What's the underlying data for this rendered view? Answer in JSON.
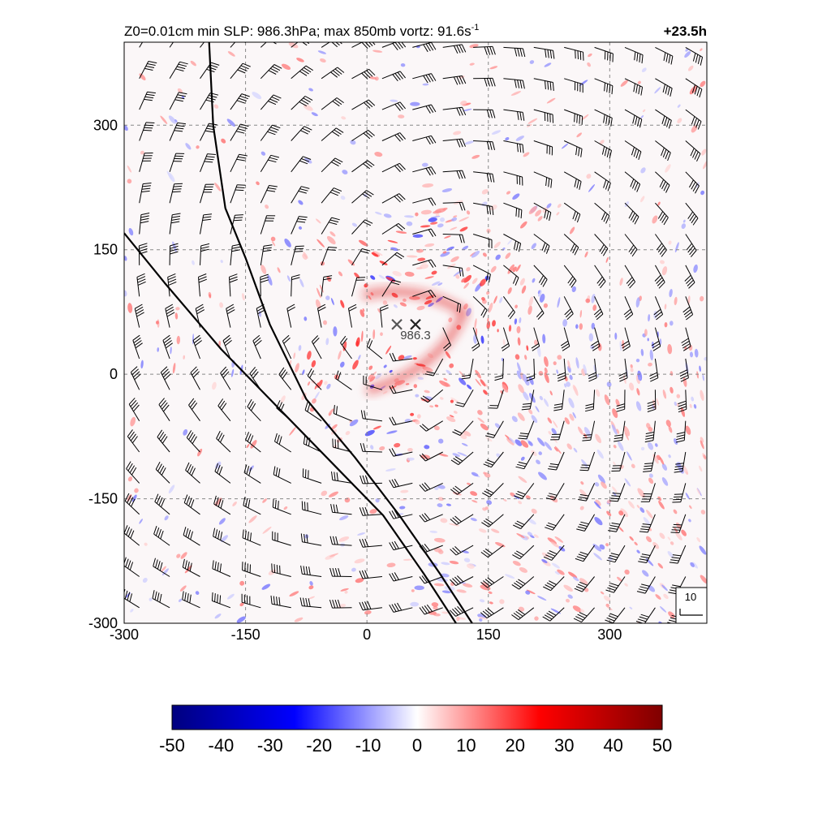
{
  "header": {
    "title_prefix": "Z0=0.01cm  min SLP: 986.3hPa; max 850mb vortz:  91.6s",
    "title_exp": "-1",
    "time_label": "+23.5h"
  },
  "chart_data": {
    "type": "heatmap",
    "title": "Z0=0.01cm  min SLP: 986.3hPa; max 850mb vortz:  91.6s-1",
    "xlabel": "",
    "ylabel": "",
    "xlim": [
      -300,
      420
    ],
    "ylim": [
      -300,
      400
    ],
    "x_ticks": [
      -300,
      -150,
      0,
      150,
      300
    ],
    "y_ticks": [
      -300,
      -150,
      0,
      150,
      300
    ],
    "x_tick_labels": [
      "-300",
      "-150",
      "0",
      "150",
      "300"
    ],
    "y_tick_labels": [
      "-300",
      "-150",
      "0",
      "150",
      "300"
    ],
    "grid": "dashed",
    "colorbar": {
      "min": -50,
      "max": 50,
      "ticks": [
        -50,
        -40,
        -30,
        -20,
        -10,
        0,
        10,
        20,
        30,
        40,
        50
      ],
      "tick_labels": [
        "-50",
        "-40",
        "-30",
        "-20",
        "-10",
        "0",
        "10",
        "20",
        "30",
        "40",
        "50"
      ],
      "colors": [
        "#00007f",
        "#0000ff",
        "#ffffff",
        "#ff0000",
        "#7f0000"
      ]
    },
    "storm_center": {
      "x": 60,
      "y": 60,
      "label": "986.3"
    },
    "secondary_center": {
      "x": 37,
      "y": 60
    },
    "eye_center": {
      "x": 60,
      "y": 50
    },
    "front_lines": [
      [
        [
          -195,
          400
        ],
        [
          -190,
          300
        ],
        [
          -175,
          200
        ],
        [
          -150,
          140
        ],
        [
          -120,
          60
        ],
        [
          -75,
          -30
        ],
        [
          -15,
          -100
        ],
        [
          40,
          -170
        ],
        [
          90,
          -240
        ],
        [
          130,
          -300
        ]
      ],
      [
        [
          -300,
          170
        ],
        [
          -250,
          110
        ],
        [
          -180,
          30
        ],
        [
          -110,
          -40
        ],
        [
          -40,
          -110
        ],
        [
          20,
          -170
        ],
        [
          70,
          -240
        ],
        [
          110,
          -300
        ]
      ]
    ],
    "wind_barbs": {
      "spacing": 37.5,
      "reference_speed_label": "10"
    }
  }
}
